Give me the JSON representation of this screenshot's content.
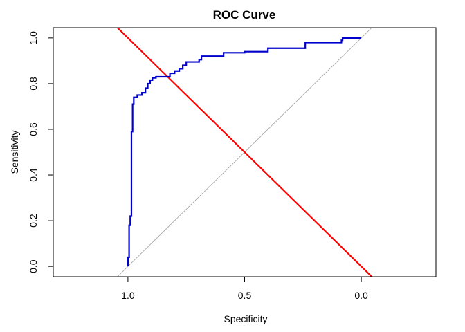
{
  "chart_data": {
    "type": "line",
    "title": "ROC Curve",
    "xlabel": "Specificity",
    "ylabel": "Sensitivity",
    "x_reversed": true,
    "xlim": [
      1.32,
      -0.32
    ],
    "ylim": [
      -0.045,
      1.045
    ],
    "x_ticks": [
      {
        "value": 1.0,
        "label": "1.0"
      },
      {
        "value": 0.5,
        "label": "0.5"
      },
      {
        "value": 0.0,
        "label": "0.0"
      }
    ],
    "y_ticks": [
      {
        "value": 0.0,
        "label": "0.0"
      },
      {
        "value": 0.2,
        "label": "0.2"
      },
      {
        "value": 0.4,
        "label": "0.4"
      },
      {
        "value": 0.6,
        "label": "0.6"
      },
      {
        "value": 0.8,
        "label": "0.8"
      },
      {
        "value": 1.0,
        "label": "1.0"
      }
    ],
    "grid": false,
    "series": [
      {
        "color": "#0000cd",
        "style": "step",
        "points": [
          [
            1.0,
            0.0
          ],
          [
            1.0,
            0.04
          ],
          [
            0.995,
            0.04
          ],
          [
            0.995,
            0.18
          ],
          [
            0.99,
            0.18
          ],
          [
            0.99,
            0.22
          ],
          [
            0.985,
            0.22
          ],
          [
            0.985,
            0.59
          ],
          [
            0.98,
            0.59
          ],
          [
            0.98,
            0.71
          ],
          [
            0.975,
            0.71
          ],
          [
            0.975,
            0.74
          ],
          [
            0.96,
            0.74
          ],
          [
            0.96,
            0.75
          ],
          [
            0.94,
            0.75
          ],
          [
            0.94,
            0.76
          ],
          [
            0.925,
            0.76
          ],
          [
            0.925,
            0.78
          ],
          [
            0.915,
            0.78
          ],
          [
            0.915,
            0.8
          ],
          [
            0.905,
            0.8
          ],
          [
            0.905,
            0.815
          ],
          [
            0.895,
            0.815
          ],
          [
            0.895,
            0.825
          ],
          [
            0.88,
            0.825
          ],
          [
            0.88,
            0.83
          ],
          [
            0.82,
            0.83
          ],
          [
            0.82,
            0.845
          ],
          [
            0.8,
            0.845
          ],
          [
            0.8,
            0.855
          ],
          [
            0.78,
            0.855
          ],
          [
            0.78,
            0.865
          ],
          [
            0.765,
            0.865
          ],
          [
            0.765,
            0.88
          ],
          [
            0.75,
            0.88
          ],
          [
            0.75,
            0.895
          ],
          [
            0.695,
            0.895
          ],
          [
            0.695,
            0.905
          ],
          [
            0.685,
            0.905
          ],
          [
            0.685,
            0.92
          ],
          [
            0.59,
            0.92
          ],
          [
            0.59,
            0.935
          ],
          [
            0.5,
            0.935
          ],
          [
            0.5,
            0.94
          ],
          [
            0.4,
            0.94
          ],
          [
            0.4,
            0.955
          ],
          [
            0.24,
            0.955
          ],
          [
            0.24,
            0.98
          ],
          [
            0.085,
            0.98
          ],
          [
            0.085,
            0.99
          ],
          [
            0.08,
            0.99
          ],
          [
            0.08,
            1.0
          ],
          [
            0.0,
            1.0
          ]
        ]
      },
      {
        "color": "#ff0000",
        "style": "line",
        "points": [
          [
            1.32,
            1.32
          ],
          [
            -0.32,
            -0.32
          ]
        ]
      },
      {
        "color": "#a0a0a0",
        "style": "line",
        "points": [
          [
            1.045,
            -0.045
          ],
          [
            -0.045,
            1.045
          ]
        ]
      }
    ]
  }
}
